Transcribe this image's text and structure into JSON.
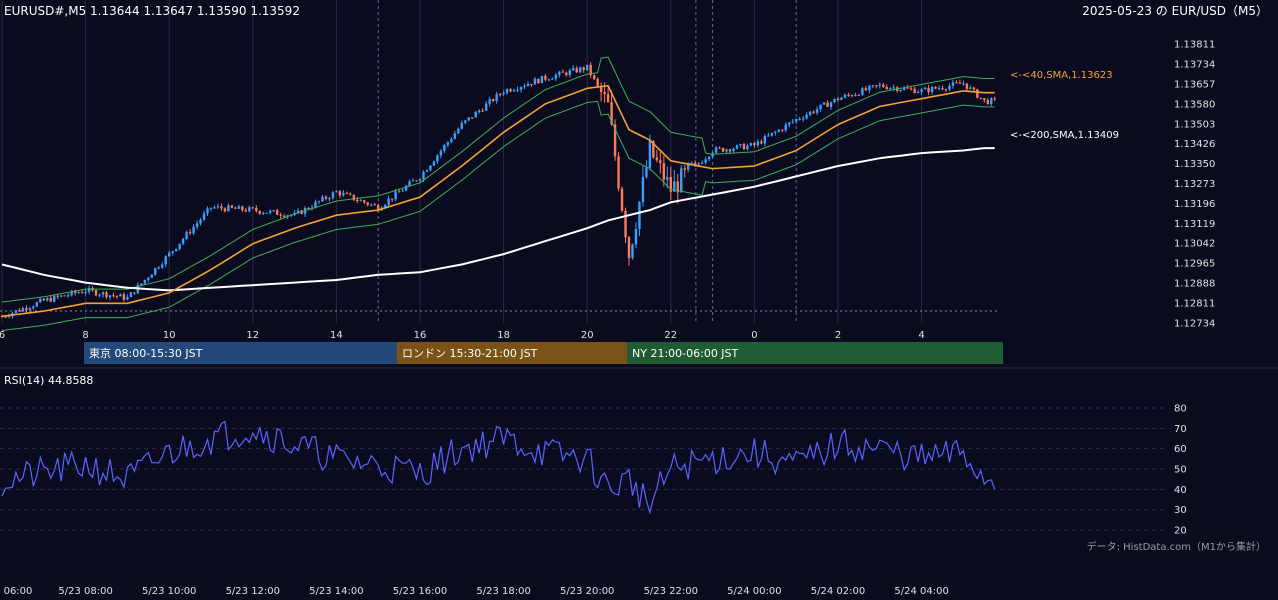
{
  "header": {
    "symbol_ohlc": "EURUSD#,M5 1.13644 1.13647 1.13590 1.13592",
    "date_title": "2025-05-23 の EUR/USD（M5）"
  },
  "price_axis": {
    "ticks": [
      "1.13811",
      "1.13734",
      "1.13657",
      "1.13580",
      "1.13503",
      "1.13426",
      "1.13350",
      "1.13273",
      "1.13196",
      "1.13119",
      "1.13042",
      "1.12965",
      "1.12888",
      "1.12811",
      "1.12734"
    ],
    "min": 1.12734,
    "max": 1.13811
  },
  "time_axis_top": [
    "6",
    "8",
    "10",
    "12",
    "14",
    "16",
    "18",
    "20",
    "22",
    "0",
    "2",
    "4"
  ],
  "sessions": [
    {
      "label": "東京 08:00-15:30 JST",
      "color": "#23497a"
    },
    {
      "label": "ロンドン 15:30-21:00 JST",
      "color": "#7a5216"
    },
    {
      "label": "NY 21:00-06:00 JST",
      "color": "#1f5c33"
    }
  ],
  "ma_labels": {
    "sma40": "<-<40,SMA,1.13623",
    "sma200": "<-<200,SMA,1.13409"
  },
  "colors": {
    "background": "#0b0b1f",
    "bull": "#3aa0ff",
    "bear": "#ff7a5a",
    "sma40": "#f5a033",
    "sma200": "#ffffff",
    "bollinger": "#3fae5a",
    "rsi": "#5a63ff"
  },
  "rsi": {
    "label": "RSI(14) 44.8588",
    "ticks": [
      "80",
      "70",
      "60",
      "50",
      "40",
      "30",
      "20"
    ],
    "min": 20,
    "max": 80
  },
  "source_note": "データ: HistData.com（M1から集計）",
  "time_axis_bottom": [
    "06:00",
    "5/23 08:00",
    "5/23 10:00",
    "5/23 12:00",
    "5/23 14:00",
    "5/23 16:00",
    "5/23 18:00",
    "5/23 20:00",
    "5/23 22:00",
    "5/24 00:00",
    "5/24 02:00",
    "5/24 04:00"
  ],
  "chart_data": {
    "type": "candlestick",
    "timeframe": "M5",
    "x_hours": [
      6,
      7,
      8,
      9,
      10,
      11,
      12,
      13,
      14,
      15,
      16,
      17,
      18,
      19,
      20,
      20.5,
      21,
      21.5,
      22,
      23,
      24,
      25,
      26,
      27,
      28,
      29,
      29.5
    ],
    "close": [
      1.1276,
      1.1282,
      1.1286,
      1.1283,
      1.13,
      1.1318,
      1.1317,
      1.1315,
      1.1324,
      1.1318,
      1.133,
      1.135,
      1.1363,
      1.1368,
      1.1372,
      1.1357,
      1.13,
      1.134,
      1.1325,
      1.134,
      1.1342,
      1.1352,
      1.136,
      1.1365,
      1.1363,
      1.1366,
      1.1359
    ],
    "sma40": [
      1.1276,
      1.1278,
      1.1281,
      1.1281,
      1.1285,
      1.1294,
      1.1304,
      1.131,
      1.1315,
      1.1317,
      1.1322,
      1.1334,
      1.1347,
      1.1358,
      1.1364,
      1.1365,
      1.1348,
      1.1344,
      1.1336,
      1.1333,
      1.1334,
      1.134,
      1.135,
      1.1357,
      1.136,
      1.1363,
      1.13623
    ],
    "sma200": [
      1.1296,
      1.1292,
      1.1289,
      1.1287,
      1.1286,
      1.1287,
      1.1288,
      1.1289,
      1.129,
      1.1292,
      1.1293,
      1.1296,
      1.13,
      1.1305,
      1.131,
      1.1313,
      1.1315,
      1.1317,
      1.132,
      1.1323,
      1.1326,
      1.133,
      1.1334,
      1.1337,
      1.1339,
      1.134,
      1.13409
    ],
    "rsi_values": [
      44,
      48,
      52,
      45,
      58,
      65,
      70,
      62,
      55,
      52,
      48,
      60,
      65,
      58,
      55,
      40,
      45,
      32,
      50,
      55,
      58,
      52,
      62,
      60,
      55,
      58,
      44.86
    ]
  }
}
